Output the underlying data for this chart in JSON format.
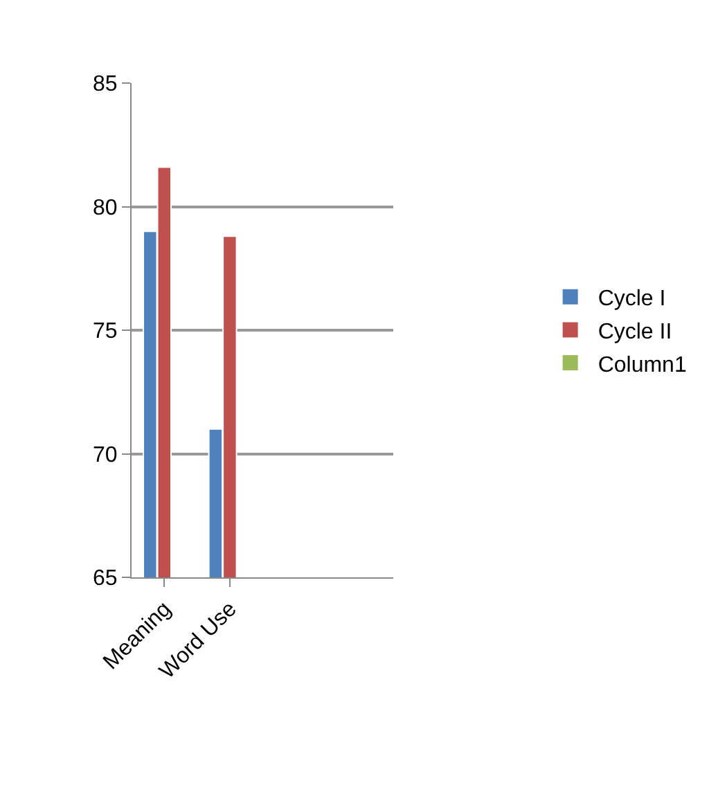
{
  "chart_data": {
    "type": "bar",
    "categories": [
      "Meaning",
      "Word Use",
      null,
      null
    ],
    "series": [
      {
        "name": "Cycle I",
        "color": "#4f81bd",
        "values": [
          79,
          71,
          null,
          null
        ]
      },
      {
        "name": "Cycle II",
        "color": "#c0504d",
        "values": [
          81.6,
          78.8,
          null,
          null
        ]
      },
      {
        "name": "Column1",
        "color": "#9bbb59",
        "values": [
          null,
          null,
          null,
          null
        ]
      }
    ],
    "ylim": [
      65,
      85
    ],
    "yticks": [
      65,
      70,
      75,
      80,
      85
    ],
    "grid": "y",
    "legend": "right"
  }
}
